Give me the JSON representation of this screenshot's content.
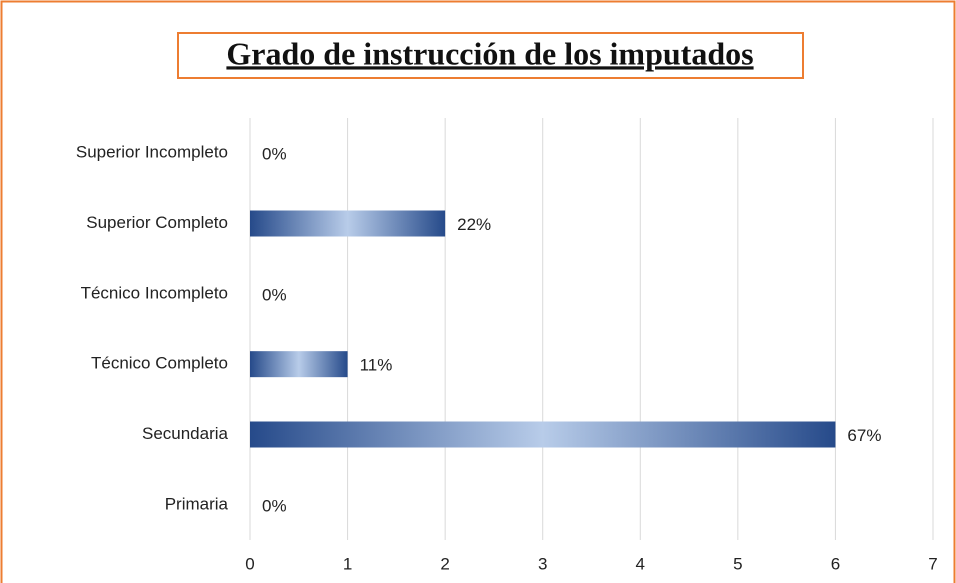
{
  "chart_data": {
    "type": "barh",
    "title": "Grado de instrucción de los imputados",
    "categories": [
      "Primaria",
      "Secundaria",
      "Técnico Completo",
      "Técnico Incompleto",
      "Superior Completo",
      "Superior Incompleto"
    ],
    "values": [
      0,
      6,
      1,
      0,
      2,
      0
    ],
    "percent_labels": [
      "0%",
      "67%",
      "11%",
      "0%",
      "22%",
      "0%"
    ],
    "color": "#2e5597",
    "xlim": [
      0,
      7
    ],
    "xticks": [
      0,
      1,
      2,
      3,
      4,
      5,
      6,
      7
    ],
    "grid": true
  }
}
